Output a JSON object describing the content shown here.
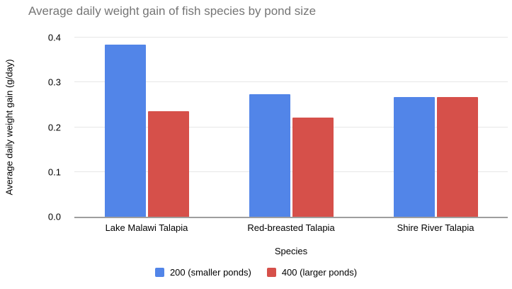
{
  "chart_data": {
    "type": "bar",
    "title": "Average daily weight gain of fish species by pond size",
    "xlabel": "Species",
    "ylabel": "Average daily weight gain (g/day)",
    "categories": [
      "Lake Malawi Talapia",
      "Red-breasted Talapia",
      "Shire River Talapia"
    ],
    "series": [
      {
        "name": "200 (smaller ponds)",
        "color": "#5285E8",
        "values": [
          0.385,
          0.274,
          0.267
        ]
      },
      {
        "name": "400 (larger ponds)",
        "color": "#D6504A",
        "values": [
          0.235,
          0.222,
          0.268
        ]
      }
    ],
    "ylim": [
      0,
      0.4
    ],
    "ytick_step": 0.1,
    "ytick_labels": [
      "0.0",
      "0.1",
      "0.2",
      "0.3",
      "0.4"
    ],
    "grid": true,
    "legend_position": "bottom"
  },
  "colors": {
    "title_text": "#757575",
    "axis_text": "#000000",
    "gridline": "#e6e6e6",
    "baseline": "#9e9e9e",
    "background": "#ffffff"
  }
}
